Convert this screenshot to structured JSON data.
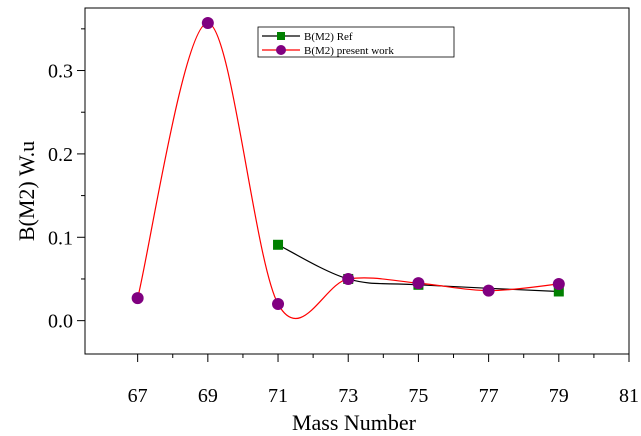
{
  "chart_data": {
    "type": "line",
    "title": "",
    "xlabel": "Mass Number",
    "ylabel": "B(M2) W.u",
    "xlim": [
      65.5,
      81
    ],
    "ylim": [
      -0.04,
      0.375
    ],
    "xticks": [
      67,
      69,
      71,
      73,
      75,
      77,
      79,
      81
    ],
    "yticks": [
      0.0,
      0.1,
      0.2,
      0.3
    ],
    "ytick_labels": [
      "0.0",
      "0.1",
      "0.2",
      "0.3"
    ],
    "grid": false,
    "legend_position": "top",
    "series": [
      {
        "name": "B(M2) Ref",
        "marker": "square",
        "color": "#008000",
        "line_color": "#000000",
        "x": [
          71,
          73,
          75,
          79
        ],
        "y": [
          0.091,
          0.05,
          0.043,
          0.035
        ]
      },
      {
        "name": "B(M2) present work",
        "marker": "circle",
        "color": "#800080",
        "line_color": "#ff0000",
        "x": [
          67,
          69,
          71,
          73,
          75,
          77,
          79
        ],
        "y": [
          0.027,
          0.357,
          0.02,
          0.05,
          0.045,
          0.036,
          0.044
        ]
      }
    ]
  }
}
